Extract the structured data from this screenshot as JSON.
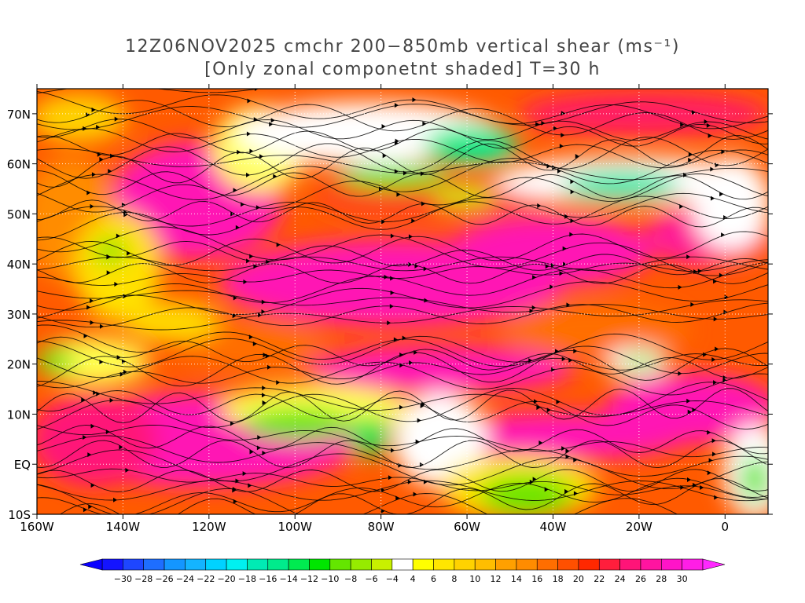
{
  "title": {
    "line1": "12Z06NOV2025 cmchr 200−850mb vertical shear (ms⁻¹)",
    "line2": "[Only zonal componetnt shaded] T=30 h"
  },
  "map": {
    "region": "North Atlantic and eastern Pacific",
    "lon_range": [
      -160,
      10
    ],
    "lat_range": [
      -10,
      75
    ],
    "lat_labels": [
      "70N",
      "60N",
      "50N",
      "40N",
      "30N",
      "20N",
      "10N",
      "EQ",
      "10S"
    ],
    "lat_values": [
      70,
      60,
      50,
      40,
      30,
      20,
      10,
      0,
      -10
    ],
    "lon_labels": [
      "160W",
      "140W",
      "120W",
      "100W",
      "80W",
      "60W",
      "40W",
      "20W",
      "0"
    ],
    "lon_values": [
      -160,
      -140,
      -120,
      -100,
      -80,
      -60,
      -40,
      -20,
      0
    ]
  },
  "colorbar": {
    "labels": [
      "−30",
      "−28",
      "−26",
      "−24",
      "−22",
      "−20",
      "−18",
      "−16",
      "−14",
      "−12",
      "−10",
      "−8",
      "−6",
      "−4",
      "4",
      "6",
      "8",
      "10",
      "12",
      "14",
      "16",
      "18",
      "20",
      "22",
      "24",
      "26",
      "28",
      "30"
    ],
    "colors": [
      "#1414ff",
      "#1e46ff",
      "#1e6eff",
      "#1496ff",
      "#14b4ff",
      "#00d2ff",
      "#00f0f0",
      "#00ebb4",
      "#00eb8c",
      "#00eb50",
      "#00e600",
      "#64e600",
      "#96eb00",
      "#c8f000",
      "#ffffff",
      "#ffff00",
      "#ffe600",
      "#ffd200",
      "#ffbe00",
      "#ffa000",
      "#ff8c00",
      "#ff6e00",
      "#ff5000",
      "#ff2800",
      "#ff1e3c",
      "#ff1478",
      "#ff14a0",
      "#ff14c8",
      "#ff1ee6"
    ]
  }
}
